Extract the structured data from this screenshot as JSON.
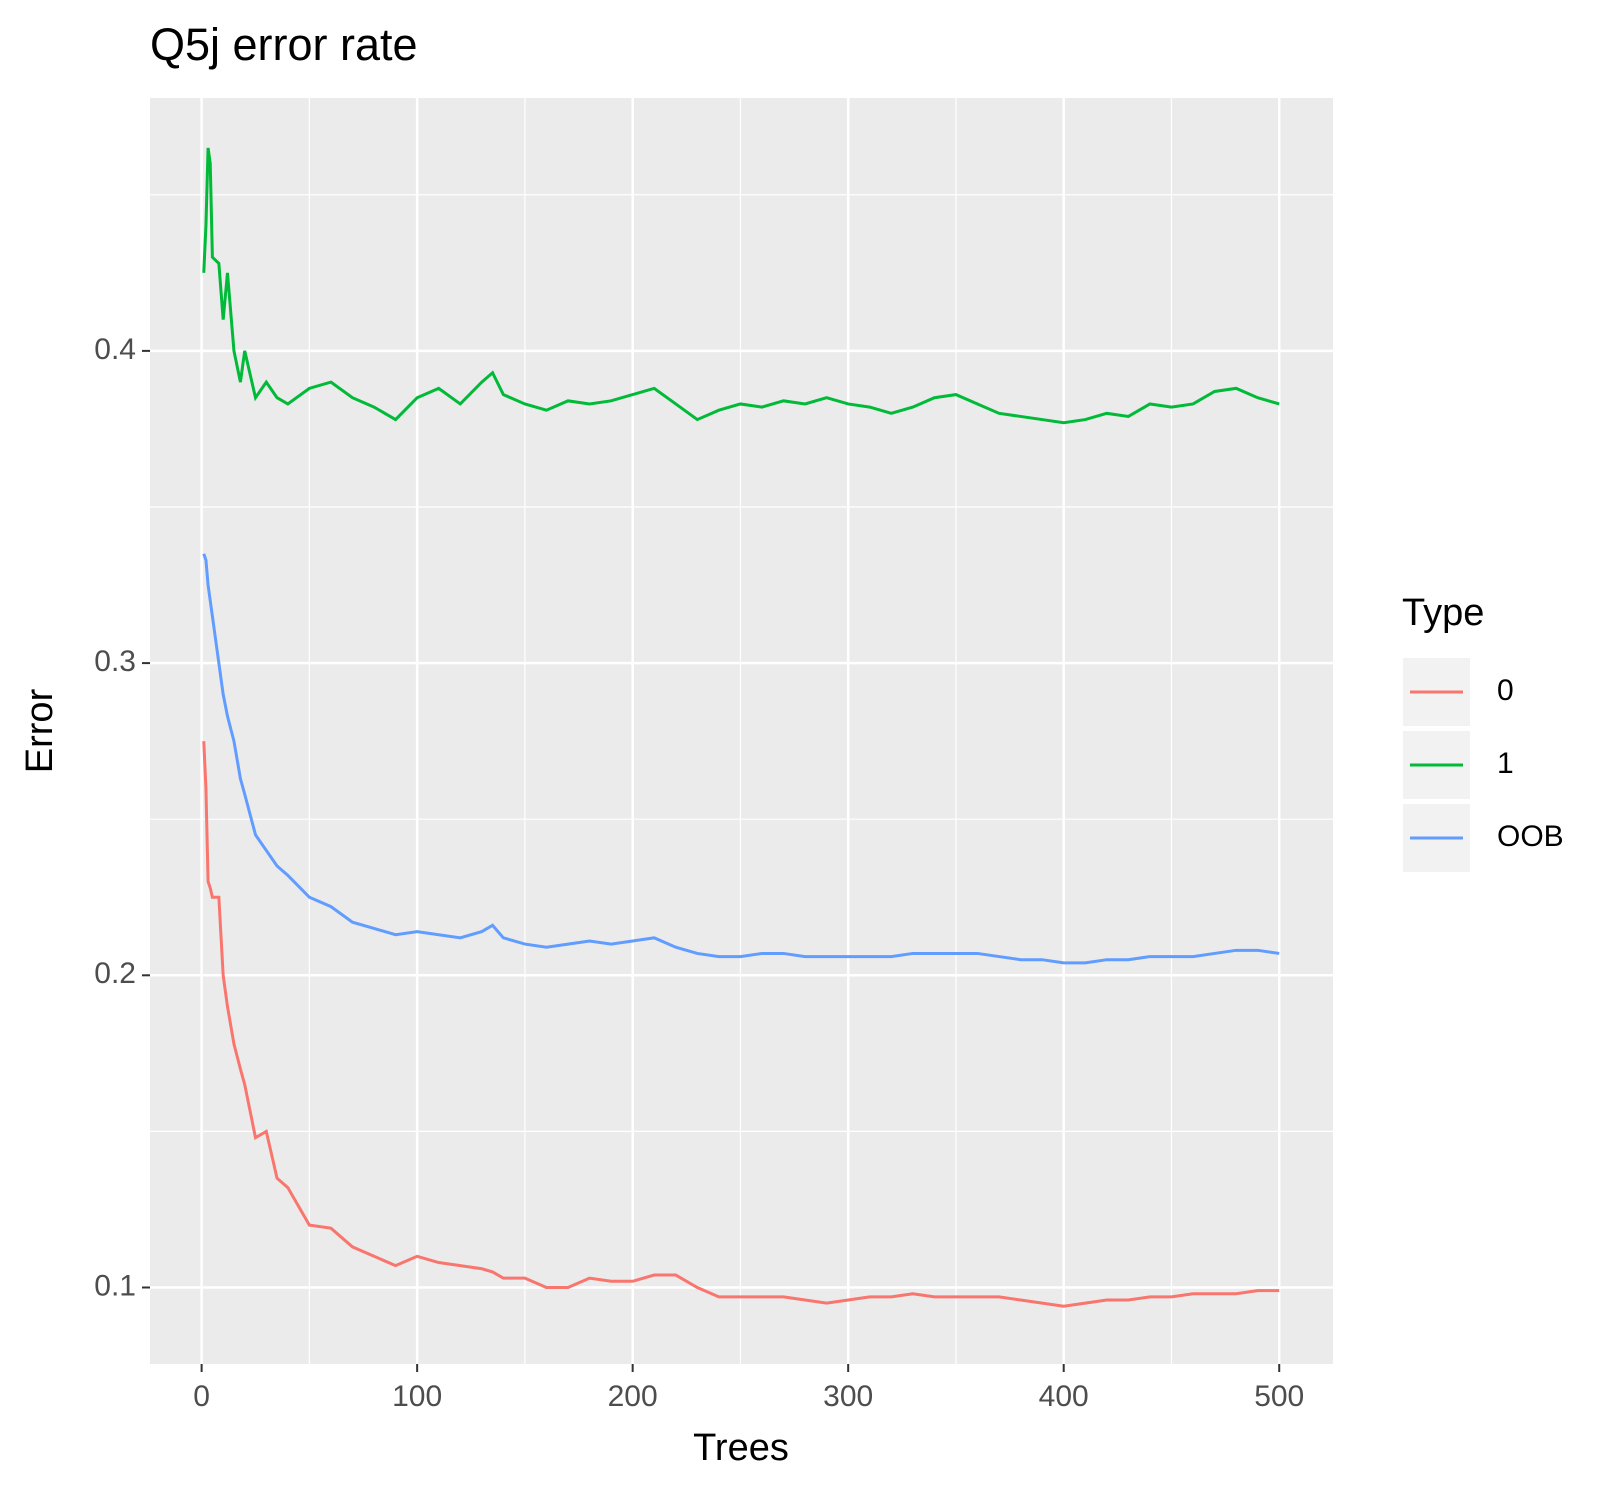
{
  "chart_data": {
    "type": "line",
    "title": "Q5j error rate",
    "x_label": "Trees",
    "y_label": "Error",
    "legend_title": "Type",
    "legend_position": "right",
    "grid": true,
    "xlim": [
      -23.95,
      524.95
    ],
    "ylim": [
      0.0755,
      0.481
    ],
    "xticks": [
      0,
      100,
      200,
      300,
      400,
      500
    ],
    "yticks": [
      0.1,
      0.2,
      0.3,
      0.4
    ],
    "xminor": [
      50,
      150,
      250,
      350,
      450
    ],
    "yminor": [
      0.15,
      0.25,
      0.35,
      0.45
    ],
    "x": [
      1,
      2,
      3,
      4,
      5,
      8,
      10,
      12,
      15,
      18,
      20,
      25,
      30,
      35,
      40,
      50,
      60,
      70,
      80,
      90,
      100,
      110,
      120,
      130,
      135,
      140,
      150,
      160,
      170,
      180,
      190,
      200,
      210,
      220,
      230,
      240,
      250,
      260,
      270,
      280,
      290,
      300,
      310,
      320,
      330,
      340,
      350,
      360,
      370,
      380,
      390,
      400,
      410,
      420,
      430,
      440,
      450,
      460,
      470,
      480,
      490,
      500
    ],
    "series": [
      {
        "name": "0",
        "color": "#f8766d",
        "values": [
          0.275,
          0.26,
          0.23,
          0.228,
          0.225,
          0.225,
          0.2,
          0.19,
          0.178,
          0.17,
          0.165,
          0.148,
          0.15,
          0.135,
          0.132,
          0.12,
          0.119,
          0.113,
          0.11,
          0.107,
          0.11,
          0.108,
          0.107,
          0.106,
          0.105,
          0.103,
          0.103,
          0.1,
          0.1,
          0.103,
          0.102,
          0.102,
          0.104,
          0.104,
          0.1,
          0.097,
          0.097,
          0.097,
          0.097,
          0.096,
          0.095,
          0.096,
          0.097,
          0.097,
          0.098,
          0.097,
          0.097,
          0.097,
          0.097,
          0.096,
          0.095,
          0.094,
          0.095,
          0.096,
          0.096,
          0.097,
          0.097,
          0.098,
          0.098,
          0.098,
          0.099,
          0.099
        ]
      },
      {
        "name": "1",
        "color": "#00ba38",
        "values": [
          0.425,
          0.44,
          0.465,
          0.46,
          0.43,
          0.428,
          0.41,
          0.425,
          0.4,
          0.39,
          0.4,
          0.385,
          0.39,
          0.385,
          0.383,
          0.388,
          0.39,
          0.385,
          0.382,
          0.378,
          0.385,
          0.388,
          0.383,
          0.39,
          0.393,
          0.386,
          0.383,
          0.381,
          0.384,
          0.383,
          0.384,
          0.386,
          0.388,
          0.383,
          0.378,
          0.381,
          0.383,
          0.382,
          0.384,
          0.383,
          0.385,
          0.383,
          0.382,
          0.38,
          0.382,
          0.385,
          0.386,
          0.383,
          0.38,
          0.379,
          0.378,
          0.377,
          0.378,
          0.38,
          0.379,
          0.383,
          0.382,
          0.383,
          0.387,
          0.388,
          0.385,
          0.383
        ]
      },
      {
        "name": "OOB",
        "color": "#619cff",
        "values": [
          0.335,
          0.333,
          0.325,
          0.32,
          0.315,
          0.3,
          0.29,
          0.283,
          0.275,
          0.263,
          0.258,
          0.245,
          0.24,
          0.235,
          0.232,
          0.225,
          0.222,
          0.217,
          0.215,
          0.213,
          0.214,
          0.213,
          0.212,
          0.214,
          0.216,
          0.212,
          0.21,
          0.209,
          0.21,
          0.211,
          0.21,
          0.211,
          0.212,
          0.209,
          0.207,
          0.206,
          0.206,
          0.207,
          0.207,
          0.206,
          0.206,
          0.206,
          0.206,
          0.206,
          0.207,
          0.207,
          0.207,
          0.207,
          0.206,
          0.205,
          0.205,
          0.204,
          0.204,
          0.205,
          0.205,
          0.206,
          0.206,
          0.206,
          0.207,
          0.208,
          0.208,
          0.207
        ]
      }
    ]
  }
}
